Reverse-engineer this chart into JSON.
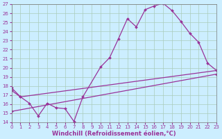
{
  "xlabel": "Windchill (Refroidissement éolien,°C)",
  "background_color": "#cceeff",
  "grid_color": "#aaccbb",
  "line_color": "#993399",
  "xlim": [
    0,
    23
  ],
  "ylim": [
    14,
    27
  ],
  "xticks": [
    0,
    1,
    2,
    3,
    4,
    5,
    6,
    7,
    8,
    9,
    10,
    11,
    12,
    13,
    14,
    15,
    16,
    17,
    18,
    19,
    20,
    21,
    22,
    23
  ],
  "yticks": [
    14,
    15,
    16,
    17,
    18,
    19,
    20,
    21,
    22,
    23,
    24,
    25,
    26,
    27
  ],
  "line1_x": [
    0,
    1,
    2,
    3,
    4,
    5,
    6,
    7,
    8,
    10,
    11,
    12,
    13,
    14,
    15,
    16,
    17,
    18,
    19,
    20,
    21,
    22,
    23
  ],
  "line1_y": [
    17.8,
    16.8,
    16.1,
    14.7,
    16.1,
    15.6,
    15.5,
    14.1,
    16.8,
    20.1,
    21.1,
    23.2,
    25.4,
    24.5,
    26.4,
    26.8,
    27.1,
    26.3,
    25.1,
    23.8,
    22.8,
    20.5,
    19.7
  ],
  "line2_x": [
    0,
    1,
    23
  ],
  "line2_y": [
    17.5,
    16.8,
    19.7
  ],
  "line3_x": [
    0,
    23
  ],
  "line3_y": [
    15.2,
    19.3
  ],
  "tick_fontsize": 5,
  "label_fontsize": 6
}
